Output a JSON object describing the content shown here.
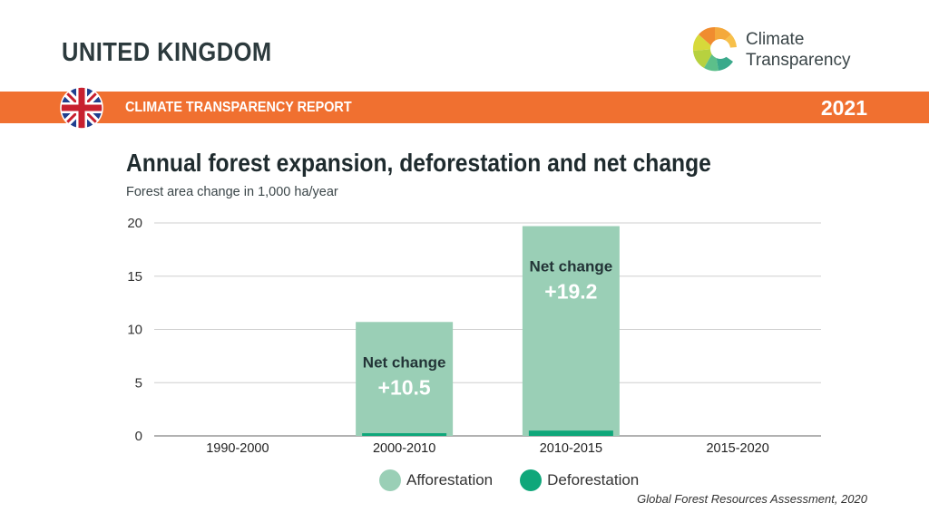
{
  "header": {
    "country": "UNITED KINGDOM",
    "report_label": "CLIMATE TRANSPARENCY REPORT",
    "year": "2021",
    "logo_line1": "Climate",
    "logo_line2": "Transparency",
    "flag_icon": "uk-flag-icon",
    "banner_color": "#f07030"
  },
  "chart_data": {
    "type": "bar",
    "title": "Annual forest expansion, deforestation and net change",
    "subtitle": "Forest area change in 1,000 ha/year",
    "categories": [
      "1990-2000",
      "2000-2010",
      "2010-2015",
      "2015-2020"
    ],
    "series": [
      {
        "name": "Afforestation",
        "color": "#9acfb6",
        "values": [
          0,
          10.7,
          19.7,
          0
        ]
      },
      {
        "name": "Deforestation",
        "color": "#0fa77a",
        "values": [
          0,
          0.2,
          0.5,
          0
        ]
      }
    ],
    "ylim": [
      0,
      20
    ],
    "yticks": [
      0,
      5,
      10,
      15,
      20
    ],
    "grid": true,
    "legend_position": "bottom",
    "annotations": [
      {
        "category": "2000-2010",
        "label": "Net change",
        "value": "+10.5"
      },
      {
        "category": "2010-2015",
        "label": "Net change",
        "value": "+19.2"
      }
    ],
    "source": "Global Forest Resources Assessment, 2020"
  }
}
